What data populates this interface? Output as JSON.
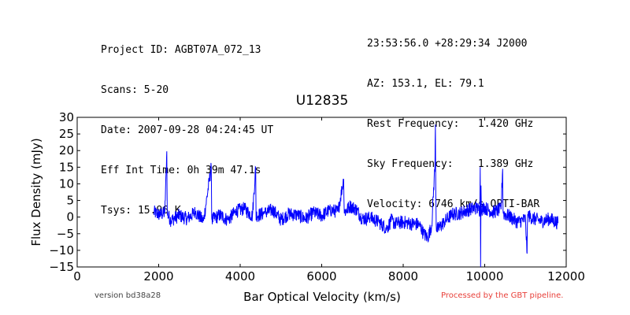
{
  "header": {
    "left": [
      "Project ID: AGBT07A_072_13",
      "Scans: 5-20",
      "Date: 2007-09-28 04:24:45 UT",
      "Eff Int Time: 0h 39m 47.1s",
      "Tsys: 15.96 K"
    ],
    "right": [
      "23:53:56.0 +28:29:34 J2000",
      "AZ: 153.1, EL: 79.1",
      "Rest Frequency:   1.420 GHz",
      "Sky Frequency:    1.389 GHz",
      "Velocity: 6746 km/s OPTI-BAR"
    ]
  },
  "footer": {
    "version": "version bd38a28",
    "processed": "Processed by the GBT pipeline.",
    "processed_color": "#e8403a"
  },
  "chart_data": {
    "type": "line",
    "title": "U12835",
    "xlabel": "Bar Optical Velocity (km/s)",
    "ylabel": "Flux Density (mJy)",
    "xlim": [
      0,
      12000
    ],
    "ylim": [
      -15,
      30
    ],
    "xticks": [
      0,
      2000,
      4000,
      6000,
      8000,
      10000,
      12000
    ],
    "yticks": [
      -15,
      -10,
      -5,
      0,
      5,
      10,
      15,
      20,
      25,
      30
    ],
    "grid": false,
    "series": [
      {
        "color": "#0000ff",
        "x": [
          1880,
          2000,
          2150,
          2200,
          2210,
          2300,
          2500,
          2700,
          2900,
          3100,
          3290,
          3300,
          3310,
          3500,
          3700,
          3900,
          4100,
          4300,
          4380,
          4390,
          4400,
          4600,
          4800,
          5000,
          5200,
          5400,
          5600,
          5800,
          6000,
          6200,
          6400,
          6540,
          6550,
          6560,
          6700,
          6850,
          7000,
          7200,
          7400,
          7600,
          7700,
          7800,
          8000,
          8200,
          8400,
          8500,
          8600,
          8700,
          8780,
          8790,
          8800,
          8810,
          8820,
          9000,
          9200,
          9400,
          9600,
          9800,
          9880,
          9890,
          9900,
          9910,
          9920,
          10000,
          10200,
          10400,
          10440,
          10450,
          10460,
          10600,
          10800,
          11000,
          11040,
          11050,
          11060,
          11200,
          11400,
          11600,
          11800
        ],
        "y": [
          1.5,
          0.8,
          1.2,
          19.8,
          1.0,
          -1.0,
          0.5,
          -0.5,
          1.5,
          -1.2,
          15.0,
          0.2,
          -0.8,
          0.6,
          -0.9,
          1.8,
          2.5,
          0.3,
          15.0,
          -1.0,
          0.5,
          1.2,
          2.2,
          -0.8,
          1.0,
          0.6,
          -0.5,
          1.3,
          0.4,
          2.2,
          1.6,
          11.5,
          2.8,
          1.5,
          3.3,
          2.3,
          -0.5,
          -0.2,
          -1.5,
          -3.5,
          -1.0,
          -2.0,
          -1.5,
          -2.0,
          -2.2,
          -5.0,
          -6.2,
          -2.5,
          16.0,
          27.8,
          7.0,
          -2.2,
          -4.0,
          -1.5,
          0.8,
          1.2,
          2.2,
          2.8,
          2.0,
          15.0,
          -15.0,
          9.5,
          2.5,
          2.8,
          1.5,
          2.3,
          14.5,
          2.0,
          1.0,
          0.3,
          -1.5,
          -0.6,
          -11.0,
          -0.8,
          0.5,
          -0.5,
          -1.2,
          -0.5,
          -1.8
        ]
      }
    ]
  }
}
